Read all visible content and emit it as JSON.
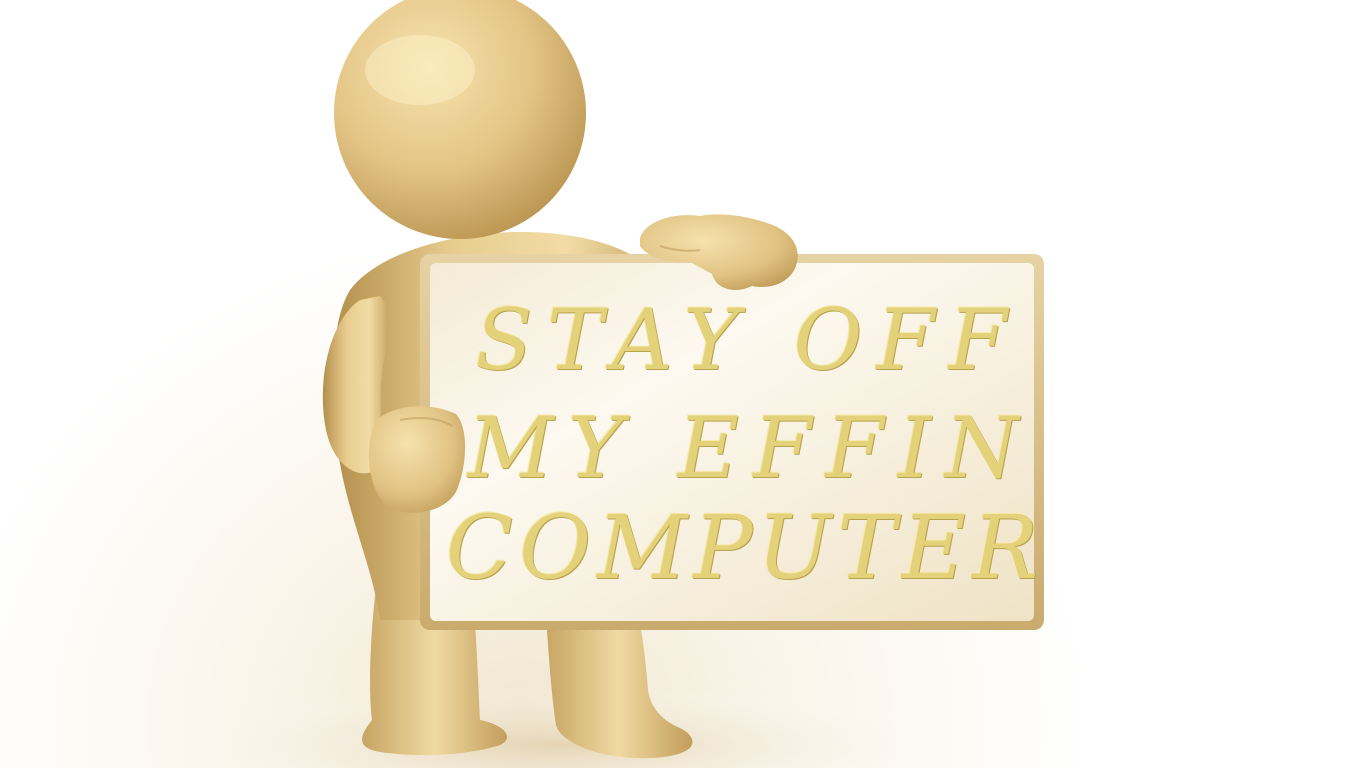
{
  "sign": {
    "line1": "STAY OFF",
    "line2": "MY EFFIN",
    "line3": "COMPUTER"
  },
  "colors": {
    "figure": "#e5c88a",
    "figure_shadow": "#b8924e",
    "sign_face": "#fbf6ea",
    "sign_frame": "#d9c08a",
    "text": "#e3d27a"
  }
}
